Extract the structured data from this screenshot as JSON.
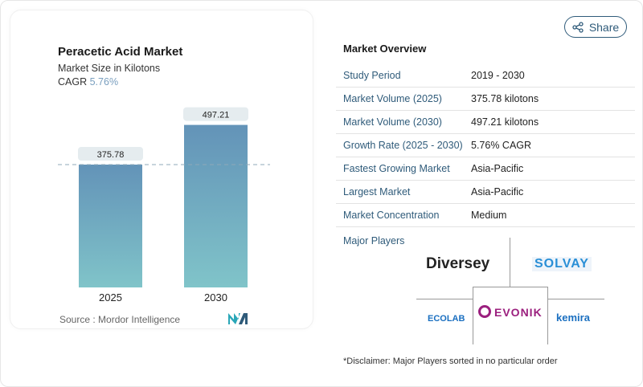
{
  "share_label": "Share",
  "card": {
    "title": "Peracetic Acid Market",
    "subtitle": "Market Size in Kilotons",
    "cagr_label": "CAGR",
    "cagr_value": "5.76%",
    "source": "Source :  Mordor Intelligence"
  },
  "chart_data": {
    "type": "bar",
    "title": "Peracetic Acid Market",
    "subtitle": "Market Size in Kilotons",
    "categories": [
      "2025",
      "2030"
    ],
    "values": [
      375.78,
      497.21
    ],
    "value_labels": [
      "375.78",
      "497.21"
    ],
    "ylim": [
      0,
      560
    ],
    "grid": false,
    "bar_color_top": "#6393b8",
    "bar_color_bottom": "#80c4c9",
    "reference_line": "dashed at 2025 value"
  },
  "overview": {
    "title": "Market Overview",
    "rows": [
      {
        "label": "Study Period",
        "value": "2019 - 2030"
      },
      {
        "label": "Market Volume (2025)",
        "value": "375.78 kilotons"
      },
      {
        "label": "Market Volume (2030)",
        "value": "497.21 kilotons"
      },
      {
        "label": "Growth Rate (2025 - 2030)",
        "value": "5.76% CAGR"
      },
      {
        "label": "Fastest Growing Market",
        "value": "Asia-Pacific"
      },
      {
        "label": "Largest Market",
        "value": "Asia-Pacific"
      },
      {
        "label": "Market Concentration",
        "value": "Medium"
      }
    ],
    "major_players_label": "Major Players",
    "players": [
      "Diversey",
      "SOLVAY",
      "ECOLAB",
      "EVONIK",
      "Kemira"
    ],
    "disclaimer": "*Disclaimer: Major Players sorted in no particular order"
  },
  "colors": {
    "accent": "#2f5b7a",
    "cagr": "#7a9fbf"
  }
}
